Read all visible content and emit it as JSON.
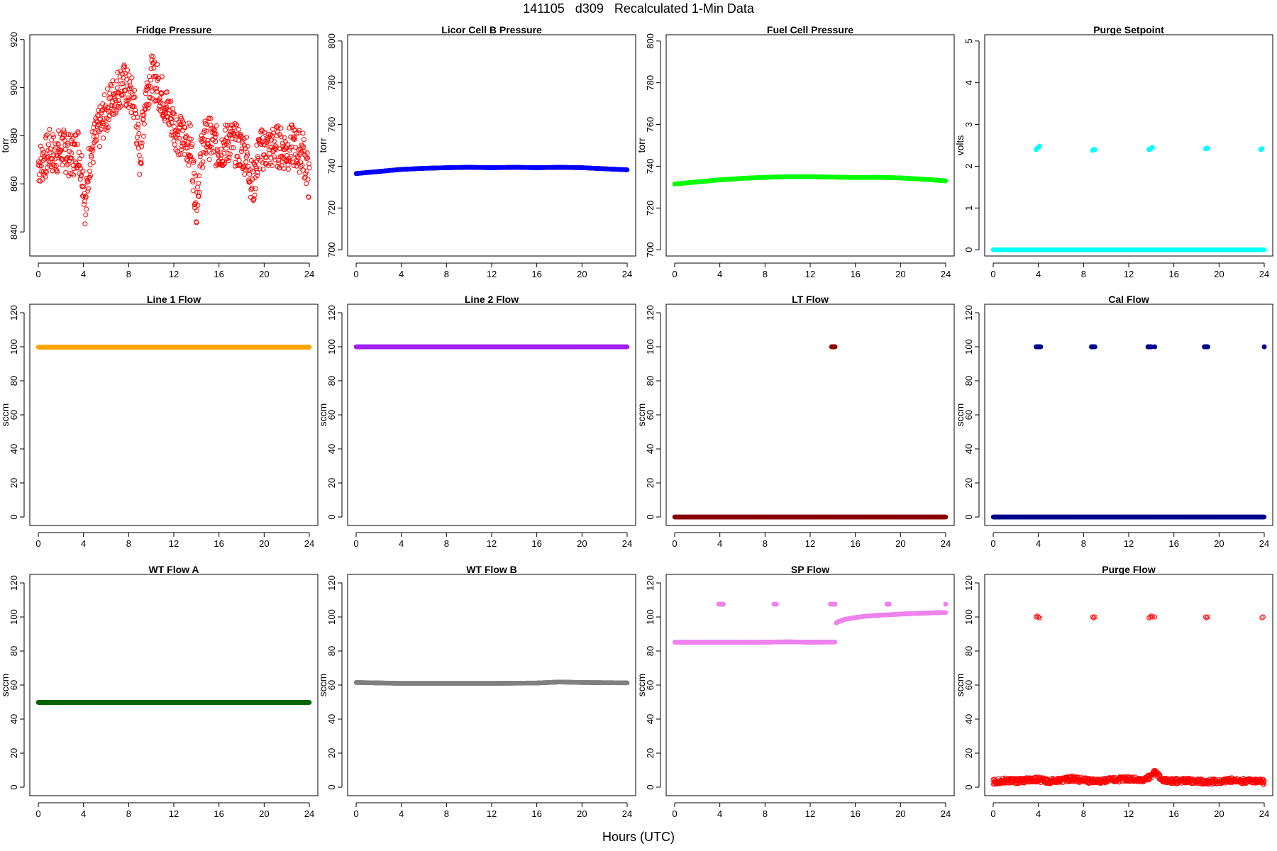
{
  "title": "141105   d309   Recalculated 1-Min Data",
  "xlabel": "Hours (UTC)",
  "chart_data": [
    {
      "type": "scatter",
      "title": "Fridge Pressure",
      "ylabel": "torr",
      "color": "#ff0000",
      "marker": "open",
      "xlim": [
        0,
        24
      ],
      "ylim": [
        830,
        922
      ],
      "yticks": [
        840,
        860,
        880,
        900,
        920
      ],
      "xticks": [
        0,
        4,
        8,
        12,
        16,
        20,
        24
      ],
      "series": [
        {
          "x": [
            0,
            0.5,
            1,
            1.5,
            2,
            2.5,
            3,
            3.5,
            4,
            4.2,
            4.5,
            5,
            5.5,
            6,
            6.5,
            7,
            7.5,
            8,
            8.5,
            9,
            9.5,
            10,
            10.5,
            11,
            11.5,
            12,
            12.5,
            13,
            13.5,
            14,
            14.5,
            15,
            15.5,
            16,
            16.5,
            17,
            17.5,
            18,
            18.5,
            19,
            19.5,
            20,
            20.5,
            21,
            21.5,
            22,
            22.5,
            23,
            23.5,
            24
          ],
          "y": [
            868,
            870,
            874,
            872,
            875,
            873,
            871,
            876,
            862,
            848,
            870,
            878,
            884,
            890,
            895,
            899,
            902,
            898,
            894,
            870,
            897,
            905,
            902,
            896,
            890,
            885,
            880,
            878,
            876,
            852,
            875,
            880,
            877,
            874,
            876,
            878,
            876,
            874,
            872,
            858,
            873,
            875,
            874,
            876,
            875,
            874,
            876,
            874,
            873,
            860
          ]
        }
      ]
    },
    {
      "type": "scatter",
      "title": "Licor Cell B Pressure",
      "ylabel": "torr",
      "color": "#0000ff",
      "marker": "filled",
      "xlim": [
        0,
        24
      ],
      "ylim": [
        697,
        803
      ],
      "yticks": [
        700,
        720,
        740,
        760,
        780,
        800
      ],
      "xticks": [
        0,
        4,
        8,
        12,
        16,
        20,
        24
      ],
      "series": [
        {
          "x": [
            0,
            2,
            4,
            6,
            8,
            10,
            12,
            14,
            16,
            18,
            20,
            22,
            24
          ],
          "y": [
            736.5,
            737.5,
            738.5,
            739,
            739.3,
            739.5,
            739.3,
            739.5,
            739.3,
            739.5,
            739.3,
            738.8,
            738.3
          ]
        }
      ]
    },
    {
      "type": "scatter",
      "title": "Fuel Cell Pressure",
      "ylabel": "torr",
      "color": "#00ff00",
      "marker": "filled",
      "xlim": [
        0,
        24
      ],
      "ylim": [
        697,
        803
      ],
      "yticks": [
        700,
        720,
        740,
        760,
        780,
        800
      ],
      "xticks": [
        0,
        4,
        8,
        12,
        16,
        20,
        24
      ],
      "series": [
        {
          "x": [
            0,
            2,
            4,
            6,
            8,
            10,
            12,
            14,
            16,
            18,
            20,
            22,
            24
          ],
          "y": [
            731.5,
            732.5,
            733.5,
            734.2,
            734.7,
            735,
            735,
            734.8,
            734.6,
            734.7,
            734.4,
            733.8,
            733
          ]
        }
      ]
    },
    {
      "type": "scatter",
      "title": "Purge Setpoint",
      "ylabel": "volts",
      "color": "#00ffff",
      "marker": "filled",
      "xlim": [
        0,
        24
      ],
      "ylim": [
        -0.15,
        5.15
      ],
      "yticks": [
        0,
        1,
        2,
        3,
        4,
        5
      ],
      "xticks": [
        0,
        4,
        8,
        12,
        16,
        20,
        24
      ],
      "series": [
        {
          "x": [
            0,
            2,
            4,
            6,
            8,
            10,
            12,
            14,
            16,
            18,
            20,
            22,
            24
          ],
          "y": [
            0,
            0,
            0,
            0,
            0,
            0,
            0,
            0,
            0,
            0,
            0,
            0,
            0
          ]
        },
        {
          "x": [
            3.8,
            3.9,
            4.0,
            4.1,
            8.8,
            8.9,
            9.0,
            13.8,
            13.9,
            14.0,
            14.1,
            18.8,
            18.9,
            19.0,
            23.7,
            23.8
          ],
          "y": [
            2.4,
            2.43,
            2.45,
            2.48,
            2.38,
            2.4,
            2.4,
            2.4,
            2.42,
            2.43,
            2.45,
            2.42,
            2.43,
            2.43,
            2.4,
            2.42
          ]
        }
      ]
    },
    {
      "type": "scatter",
      "title": "Line 1 Flow",
      "ylabel": "sccm",
      "color": "#ffa500",
      "marker": "filled",
      "xlim": [
        0,
        24
      ],
      "ylim": [
        -5,
        125
      ],
      "yticks": [
        0,
        20,
        40,
        60,
        80,
        100,
        120
      ],
      "xticks": [
        0,
        4,
        8,
        12,
        16,
        20,
        24
      ],
      "series": [
        {
          "x": [
            0,
            4,
            8,
            12,
            16,
            20,
            24
          ],
          "y": [
            99.8,
            99.8,
            99.8,
            99.8,
            99.8,
            99.8,
            99.8
          ]
        }
      ]
    },
    {
      "type": "scatter",
      "title": "Line 2 Flow",
      "ylabel": "sccm",
      "color": "#a020f0",
      "marker": "filled",
      "xlim": [
        0,
        24
      ],
      "ylim": [
        -5,
        125
      ],
      "yticks": [
        0,
        20,
        40,
        60,
        80,
        100,
        120
      ],
      "xticks": [
        0,
        4,
        8,
        12,
        16,
        20,
        24
      ],
      "series": [
        {
          "x": [
            0,
            4,
            8,
            12,
            16,
            20,
            24
          ],
          "y": [
            100,
            100,
            100,
            100,
            100,
            100,
            100
          ]
        }
      ]
    },
    {
      "type": "scatter",
      "title": "LT Flow",
      "ylabel": "sccm",
      "color": "#8b0000",
      "marker": "filled",
      "xlim": [
        0,
        24
      ],
      "ylim": [
        -5,
        125
      ],
      "yticks": [
        0,
        20,
        40,
        60,
        80,
        100,
        120
      ],
      "xticks": [
        0,
        4,
        8,
        12,
        16,
        20,
        24
      ],
      "series": [
        {
          "x": [
            0,
            4,
            8,
            12,
            16,
            20,
            24
          ],
          "y": [
            0,
            0,
            0,
            0,
            0,
            0,
            0
          ]
        },
        {
          "x": [
            13.9,
            14.0,
            14.1,
            14.2
          ],
          "y": [
            100,
            100,
            100,
            100
          ]
        }
      ]
    },
    {
      "type": "scatter",
      "title": "Cal Flow",
      "ylabel": "sccm",
      "color": "#00008b",
      "marker": "filled",
      "xlim": [
        0,
        24
      ],
      "ylim": [
        -5,
        125
      ],
      "yticks": [
        0,
        20,
        40,
        60,
        80,
        100,
        120
      ],
      "xticks": [
        0,
        4,
        8,
        12,
        16,
        20,
        24
      ],
      "series": [
        {
          "x": [
            0,
            4,
            8,
            12,
            16,
            20,
            24
          ],
          "y": [
            0,
            0,
            0,
            0,
            0,
            0,
            0
          ]
        },
        {
          "x": [
            3.8,
            3.9,
            4.0,
            4.1,
            4.2,
            8.7,
            8.8,
            8.9,
            9.0,
            13.7,
            13.8,
            13.9,
            14.0,
            14.3,
            18.7,
            18.8,
            18.9,
            19.0,
            24.0
          ],
          "y": [
            100,
            100,
            100,
            100,
            100,
            100,
            100,
            100,
            100,
            100,
            100,
            100,
            100,
            100,
            100,
            100,
            100,
            100,
            100
          ]
        }
      ]
    },
    {
      "type": "scatter",
      "title": "WT Flow A",
      "ylabel": "sccm",
      "color": "#006400",
      "marker": "filled",
      "xlim": [
        0,
        24
      ],
      "ylim": [
        -5,
        125
      ],
      "yticks": [
        0,
        20,
        40,
        60,
        80,
        100,
        120
      ],
      "xticks": [
        0,
        4,
        8,
        12,
        16,
        20,
        24
      ],
      "series": [
        {
          "x": [
            0,
            4,
            8,
            12,
            16,
            20,
            24
          ],
          "y": [
            49.8,
            49.8,
            49.8,
            49.8,
            49.8,
            49.8,
            49.8
          ]
        }
      ]
    },
    {
      "type": "scatter",
      "title": "WT Flow B",
      "ylabel": "sccm",
      "color": "#808080",
      "marker": "filled",
      "xlim": [
        0,
        24
      ],
      "ylim": [
        -5,
        125
      ],
      "yticks": [
        0,
        20,
        40,
        60,
        80,
        100,
        120
      ],
      "xticks": [
        0,
        4,
        8,
        12,
        16,
        20,
        24
      ],
      "series": [
        {
          "x": [
            0,
            4,
            8,
            12,
            16,
            18,
            20,
            24
          ],
          "y": [
            61.5,
            61,
            61,
            61,
            61.2,
            61.8,
            61.5,
            61.3
          ]
        }
      ]
    },
    {
      "type": "scatter",
      "title": "SP Flow",
      "ylabel": "sccm",
      "color": "#ee82ee",
      "marker": "filled",
      "xlim": [
        0,
        24
      ],
      "ylim": [
        -5,
        125
      ],
      "yticks": [
        0,
        20,
        40,
        60,
        80,
        100,
        120
      ],
      "xticks": [
        0,
        4,
        8,
        12,
        16,
        20,
        24
      ],
      "series": [
        {
          "x": [
            0,
            2,
            4,
            6,
            8,
            10,
            12,
            14.2
          ],
          "y": [
            85.2,
            85.2,
            85.2,
            85.2,
            85.2,
            85.4,
            85.2,
            85.3
          ]
        },
        {
          "x": [
            14.3,
            14.6,
            15,
            16,
            17,
            18,
            19,
            20,
            21,
            22,
            23,
            24
          ],
          "y": [
            96.5,
            97.5,
            98.5,
            99.7,
            100.5,
            101,
            101.3,
            101.7,
            102,
            102.2,
            102.5,
            102.6
          ]
        },
        {
          "x": [
            3.9,
            4.0,
            4.1,
            4.2,
            4.3,
            8.8,
            8.9,
            9.0,
            13.8,
            13.9,
            14.0,
            14.1,
            14.2,
            18.8,
            18.9,
            19.0,
            24.0
          ],
          "y": [
            107.5,
            107.5,
            107.5,
            107.5,
            107.5,
            107.5,
            107.5,
            107.5,
            107.5,
            107.5,
            107.5,
            107.5,
            107.5,
            107.5,
            107.5,
            107.5,
            107.5
          ]
        }
      ]
    },
    {
      "type": "scatter",
      "title": "Purge Flow",
      "ylabel": "sccm",
      "color": "#ff0000",
      "marker": "open",
      "xlim": [
        0,
        24
      ],
      "ylim": [
        -5,
        125
      ],
      "yticks": [
        0,
        20,
        40,
        60,
        80,
        100,
        120
      ],
      "xticks": [
        0,
        4,
        8,
        12,
        16,
        20,
        24
      ],
      "series": [
        {
          "x": [
            0,
            1,
            2,
            3,
            4,
            5,
            6,
            7,
            8,
            9,
            10,
            11,
            12,
            13,
            14,
            14.3,
            15,
            16,
            17,
            18,
            19,
            20,
            21,
            22,
            23,
            24
          ],
          "y": [
            3,
            4,
            3.5,
            4,
            4.5,
            3.5,
            4,
            5,
            4,
            3.5,
            4,
            4.5,
            5,
            4,
            6,
            9,
            4,
            3.5,
            4,
            3.5,
            3,
            3.5,
            4,
            3.5,
            4,
            3
          ]
        },
        {
          "x": [
            3.8,
            3.9,
            4.0,
            4.1,
            8.8,
            8.9,
            9.0,
            13.8,
            13.9,
            14.0,
            14.1,
            14.3,
            18.8,
            18.9,
            19.0,
            23.8,
            23.9
          ],
          "y": [
            100,
            100.5,
            100,
            99.5,
            100,
            99.5,
            100,
            99.5,
            100,
            100.5,
            100,
            100,
            100,
            99.5,
            100,
            99.5,
            100
          ]
        }
      ]
    }
  ]
}
